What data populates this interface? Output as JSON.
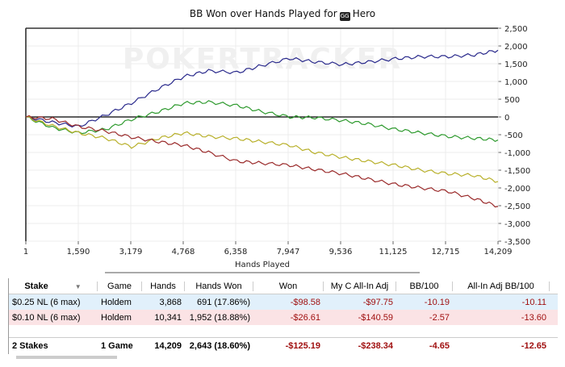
{
  "chart_data": {
    "type": "line",
    "title": "BB Won over Hands Played for",
    "player": "Hero",
    "xlabel": "Hands Played",
    "ylabel": "",
    "xlim": [
      1,
      14209
    ],
    "ylim": [
      -3500,
      2500
    ],
    "xticks": [
      "1",
      "1,590",
      "3,179",
      "4,768",
      "6,358",
      "7,947",
      "9,536",
      "11,125",
      "12,715",
      "14,209"
    ],
    "yticks": [
      "2,500",
      "2,000",
      "1,500",
      "1,000",
      "500",
      "0",
      "-500",
      "-1,000",
      "-1,500",
      "-2,000",
      "-2,500",
      "-3,000",
      "-3,500"
    ],
    "watermark": "POKERTRACKER",
    "grid": true,
    "x": [
      1,
      800,
      1590,
      2400,
      3179,
      4000,
      4768,
      5500,
      6358,
      7100,
      7947,
      8700,
      9536,
      10300,
      11125,
      11900,
      12715,
      13500,
      14209
    ],
    "series": [
      {
        "name": "blue",
        "color": "#2a2a8c",
        "values": [
          0,
          -150,
          -270,
          50,
          390,
          800,
          1140,
          1300,
          1250,
          1450,
          1650,
          1550,
          1480,
          1550,
          1640,
          1700,
          1700,
          1750,
          1880
        ]
      },
      {
        "name": "green",
        "color": "#2e9a2e",
        "values": [
          0,
          -300,
          -450,
          -350,
          -70,
          150,
          390,
          420,
          320,
          150,
          0,
          -20,
          -100,
          -200,
          -350,
          -450,
          -550,
          -600,
          -650
        ]
      },
      {
        "name": "yellow",
        "color": "#b8b02a",
        "values": [
          0,
          -250,
          -450,
          -600,
          -840,
          -600,
          -450,
          -550,
          -610,
          -700,
          -800,
          -1000,
          -1140,
          -1250,
          -1360,
          -1500,
          -1600,
          -1650,
          -1820
        ]
      },
      {
        "name": "red",
        "color": "#9a2a2a",
        "values": [
          0,
          -50,
          -270,
          -400,
          -570,
          -700,
          -800,
          -1000,
          -1250,
          -1300,
          -1360,
          -1480,
          -1600,
          -1750,
          -1900,
          -2000,
          -2100,
          -2300,
          -2520
        ]
      }
    ]
  },
  "table": {
    "headers": [
      "Stake",
      "Game",
      "Hands",
      "Hands Won",
      "Won",
      "My C All-In Adj",
      "BB/100",
      "All-In Adj BB/100"
    ],
    "rows": [
      [
        "$0.25 NL (6 max)",
        "Holdem",
        "3,868",
        "691 (17.86%)",
        "-$98.58",
        "-$97.75",
        "-10.19",
        "-10.11"
      ],
      [
        "$0.10 NL (6 max)",
        "Holdem",
        "10,341",
        "1,952 (18.88%)",
        "-$26.61",
        "-$140.59",
        "-2.57",
        "-13.60"
      ]
    ],
    "total": [
      "2 Stakes",
      "1 Game",
      "14,209",
      "2,643 (18.60%)",
      "-$125.19",
      "-$238.34",
      "-4.65",
      "-12.65"
    ]
  }
}
